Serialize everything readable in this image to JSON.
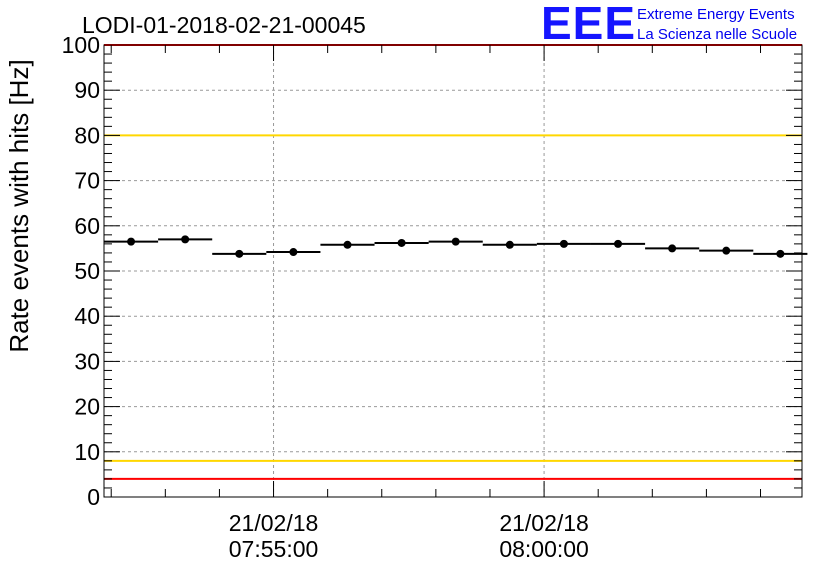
{
  "title": "LODI-01-2018-02-21-00045",
  "logo": {
    "mark": "EEE",
    "line1": "Extreme Energy Events",
    "line2": "La Scienza nelle Scuole",
    "color": "#1515ff",
    "text_color": "#0000ee"
  },
  "colors": {
    "threshold_red": "#ff0000",
    "threshold_yellow": "#ffd700",
    "grid": "#999999",
    "points": "#000000"
  },
  "chart_data": {
    "type": "scatter",
    "title": "LODI-01-2018-02-21-00045",
    "xlabel": "",
    "ylabel": "Rate events with hits [Hz]",
    "x_axis": "time",
    "x_range": [
      "2018-02-21 07:51:52",
      "2018-02-21 08:04:46"
    ],
    "x_ticks": [
      {
        "time": "2018-02-21 07:55:00",
        "date_label": "21/02/18",
        "time_label": "07:55:00"
      },
      {
        "time": "2018-02-21 08:00:00",
        "date_label": "21/02/18",
        "time_label": "08:00:00"
      }
    ],
    "ylim": [
      0,
      100
    ],
    "y_ticks": [
      "0",
      "10",
      "20",
      "30",
      "40",
      "50",
      "60",
      "70",
      "80",
      "90",
      "100"
    ],
    "grid": true,
    "series": [
      {
        "points": [
          {
            "t": "2018-02-21 07:52:22",
            "y": 56.5
          },
          {
            "t": "2018-02-21 07:53:22",
            "y": 57.0
          },
          {
            "t": "2018-02-21 07:54:22",
            "y": 53.8
          },
          {
            "t": "2018-02-21 07:55:22",
            "y": 54.2
          },
          {
            "t": "2018-02-21 07:56:22",
            "y": 55.8
          },
          {
            "t": "2018-02-21 07:57:22",
            "y": 56.2
          },
          {
            "t": "2018-02-21 07:58:22",
            "y": 56.5
          },
          {
            "t": "2018-02-21 07:59:22",
            "y": 55.8
          },
          {
            "t": "2018-02-21 08:00:22",
            "y": 56.0
          },
          {
            "t": "2018-02-21 08:01:22",
            "y": 56.0
          },
          {
            "t": "2018-02-21 08:02:22",
            "y": 55.0
          },
          {
            "t": "2018-02-21 08:03:22",
            "y": 54.5
          },
          {
            "t": "2018-02-21 08:04:22",
            "y": 53.8
          }
        ],
        "bin_width_seconds": 60
      }
    ],
    "reference_lines": [
      {
        "y": 100,
        "color": "#ff0000"
      },
      {
        "y": 80,
        "color": "#ffd700"
      },
      {
        "y": 8,
        "color": "#ffd700"
      },
      {
        "y": 4,
        "color": "#ff0000"
      }
    ]
  }
}
